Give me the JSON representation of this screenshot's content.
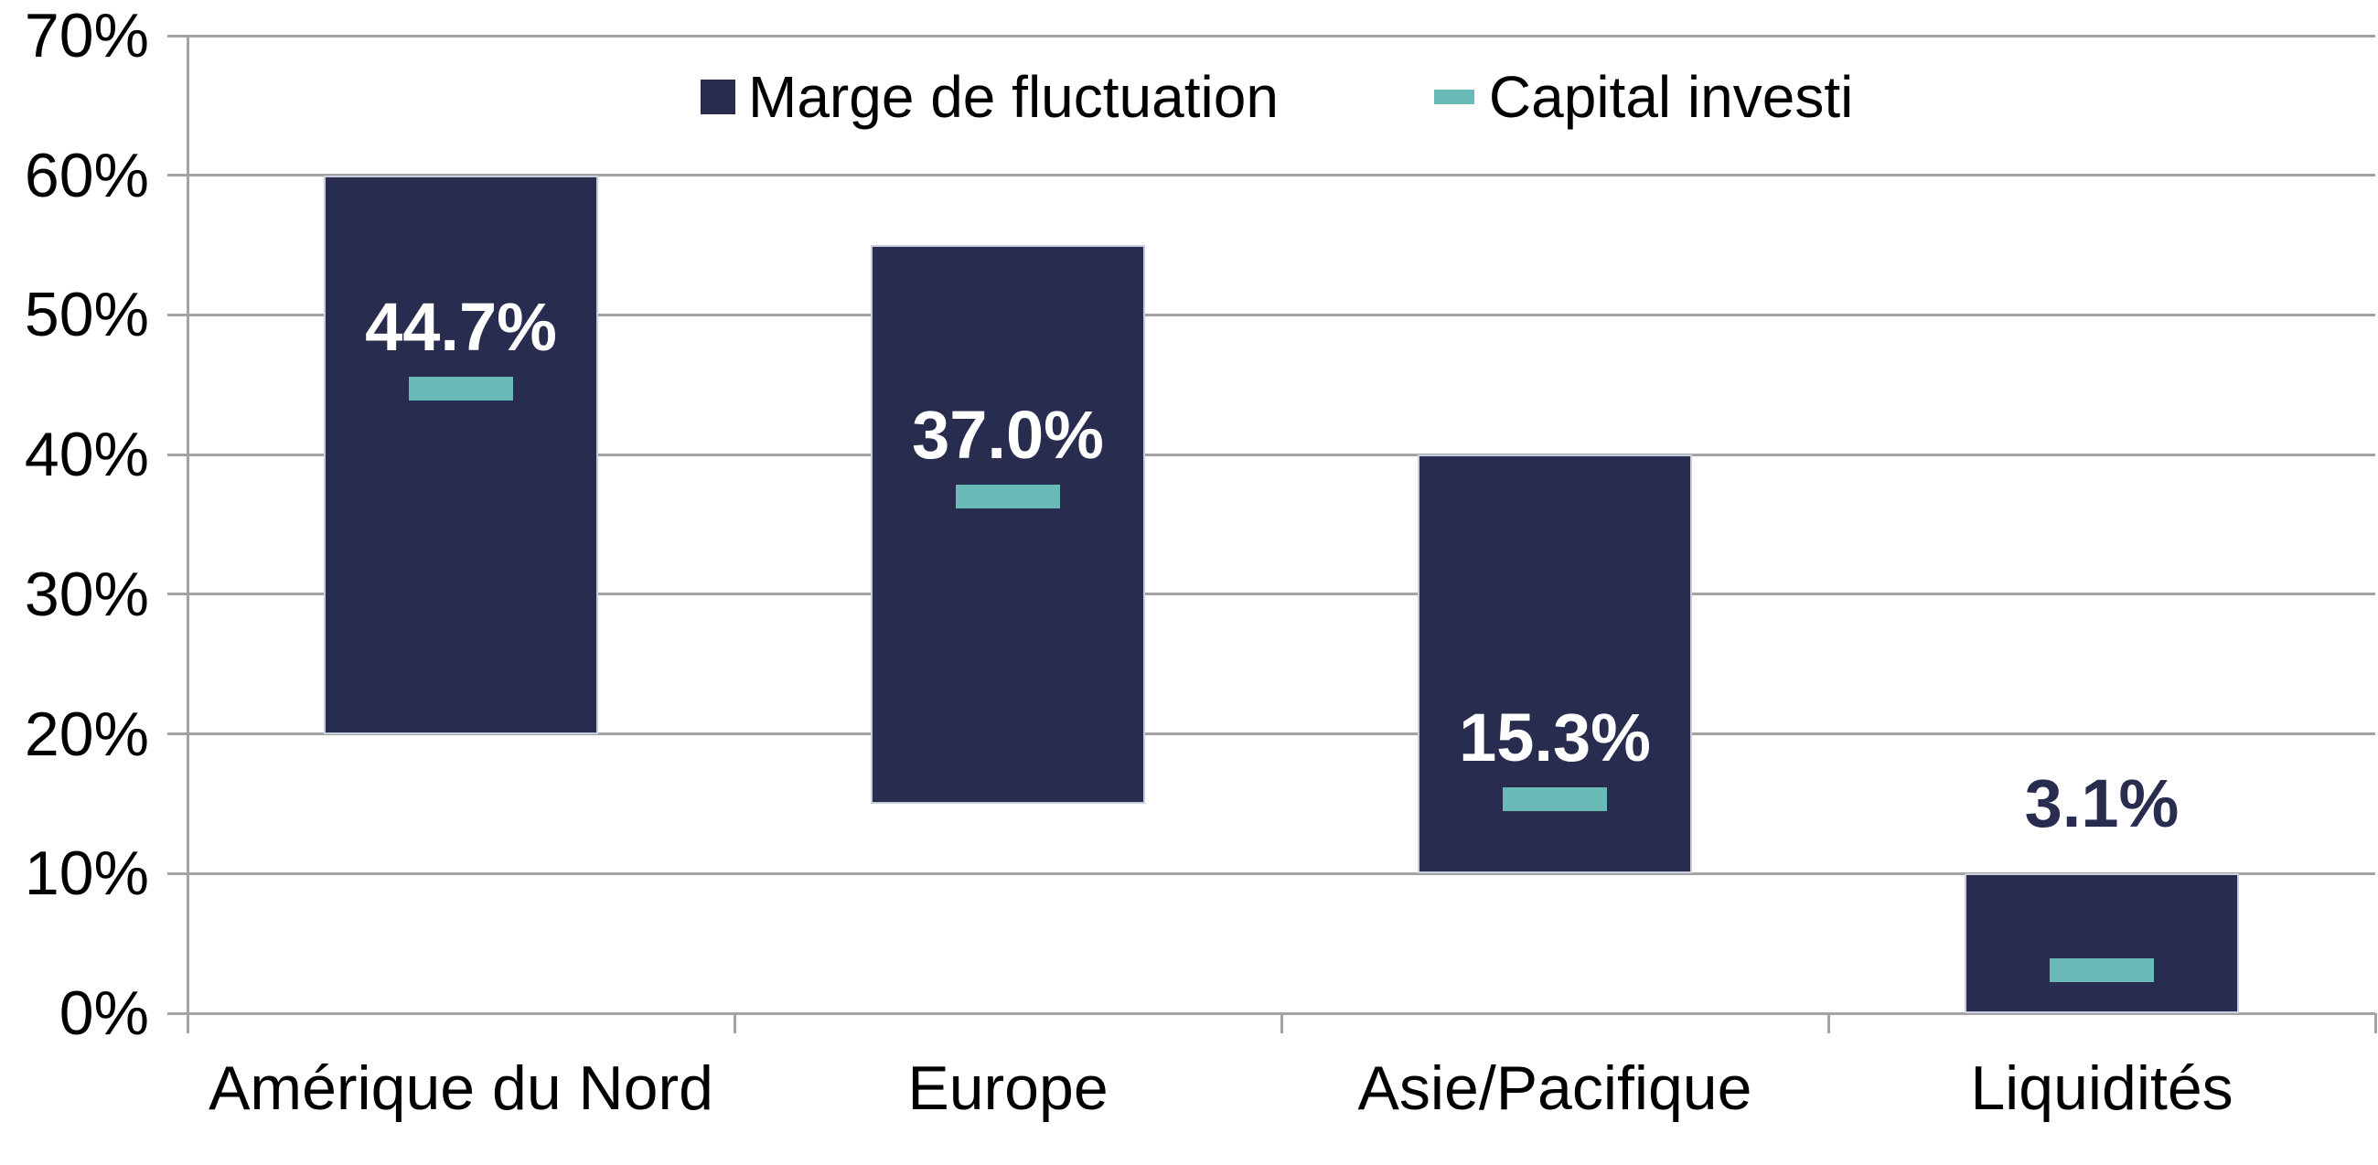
{
  "chart_data": {
    "type": "bar",
    "subtype": "floating-range-bars-with-dash-markers",
    "title": "",
    "categories": [
      "Amérique du Nord",
      "Europe",
      "Asie/Pacifique",
      "Liquidités"
    ],
    "series": [
      {
        "name": "Marge de fluctuation",
        "type": "range-bar",
        "color": "#282c4e",
        "border_color": "#c9cdde",
        "ranges": [
          {
            "low": 20,
            "high": 60
          },
          {
            "low": 15,
            "high": 55
          },
          {
            "low": 10,
            "high": 40
          },
          {
            "low": 0,
            "high": 10
          }
        ]
      },
      {
        "name": "Capital investi",
        "type": "dash-marker",
        "color": "#6abbb7",
        "values": [
          44.7,
          37.0,
          15.3,
          3.1
        ],
        "labels": [
          "44.7%",
          "37.0%",
          "15.3%",
          "3.1%"
        ],
        "label_inside_bar": [
          true,
          true,
          true,
          false
        ],
        "label_color_inside": "#ffffff",
        "label_color_outside": "#282c4e"
      }
    ],
    "y_axis": {
      "min": 0,
      "max": 70,
      "step": 10,
      "tick_labels": [
        "0%",
        "10%",
        "20%",
        "30%",
        "40%",
        "50%",
        "60%",
        "70%"
      ],
      "format": "percent"
    },
    "x_axis": {
      "tick_marks_between_categories": true
    },
    "grid": {
      "horizontal": true,
      "vertical": false,
      "color": "#a3a3a3"
    },
    "legend": {
      "position": "top-center",
      "entries": [
        "Marge de fluctuation",
        "Capital investi"
      ]
    },
    "background": "#ffffff",
    "text_color": "#000000"
  }
}
